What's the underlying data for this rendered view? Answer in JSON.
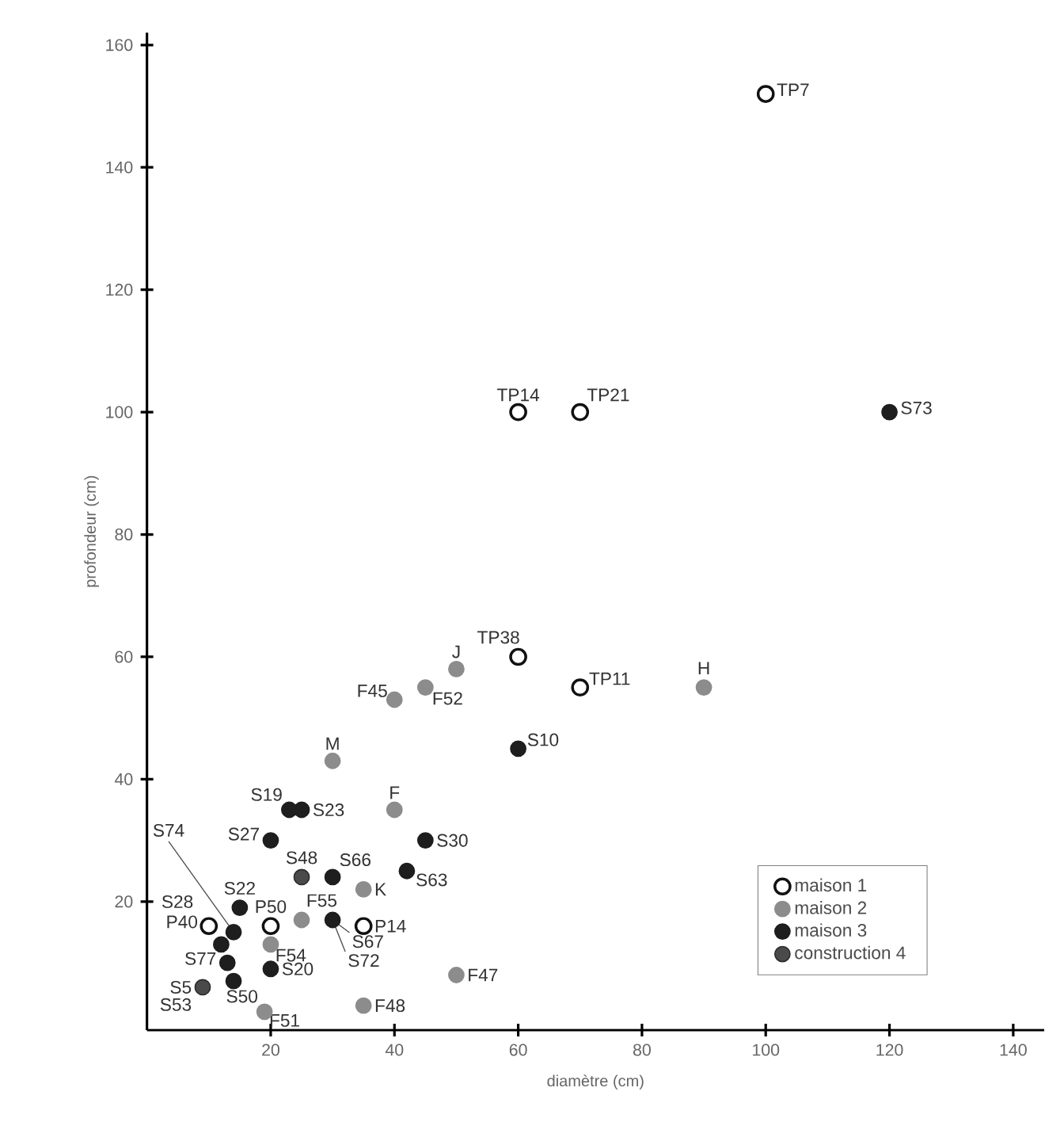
{
  "chart_data": {
    "type": "scatter",
    "xlabel": "diamètre (cm)",
    "ylabel": "profondeur (cm)",
    "xlim": [
      0,
      145
    ],
    "ylim": [
      -1,
      162
    ],
    "xticks": [
      20,
      40,
      60,
      80,
      100,
      120,
      140
    ],
    "yticks": [
      20,
      40,
      60,
      80,
      100,
      120,
      140,
      160
    ],
    "legend": "bottom right",
    "series": [
      {
        "name": "maison 1",
        "color": "#111111",
        "x": [
          100,
          60,
          70,
          60,
          70,
          10,
          20,
          35
        ],
        "values": [
          152,
          100,
          100,
          60,
          55,
          16,
          16,
          16
        ]
      },
      {
        "name": "maison 2",
        "color": "#8c8c8c",
        "x": [
          50,
          40,
          45,
          90,
          30,
          40,
          35,
          25,
          20,
          50,
          35,
          19
        ],
        "values": [
          58,
          53,
          55,
          55,
          43,
          35,
          22,
          17,
          13,
          8,
          3,
          2
        ]
      },
      {
        "name": "maison 3",
        "color": "#1e1e1e",
        "x": [
          120,
          60,
          23,
          25,
          20,
          45,
          30,
          42,
          15,
          14,
          12,
          30,
          null,
          13,
          20,
          14
        ],
        "values": [
          100,
          45,
          35,
          35,
          30,
          30,
          24,
          25,
          19,
          15,
          13,
          17,
          null,
          10,
          9,
          7
        ]
      },
      {
        "name": "construction 4",
        "color": "#4a4a4a",
        "x": [
          25,
          9
        ],
        "values": [
          24,
          6
        ]
      }
    ],
    "annotations": [
      {
        "text": "TP7",
        "x": 100,
        "y": 152
      },
      {
        "text": "TP14",
        "x": 60,
        "y": 100
      },
      {
        "text": "TP21",
        "x": 70,
        "y": 100
      },
      {
        "text": "TP38",
        "x": 60,
        "y": 60
      },
      {
        "text": "TP11",
        "x": 70,
        "y": 55
      },
      {
        "text": "P40",
        "x": 10,
        "y": 16
      },
      {
        "text": "P50",
        "x": 20,
        "y": 16
      },
      {
        "text": "P14",
        "x": 35,
        "y": 16
      },
      {
        "text": "J",
        "x": 50,
        "y": 58
      },
      {
        "text": "F45",
        "x": 40,
        "y": 53
      },
      {
        "text": "F52",
        "x": 45,
        "y": 55
      },
      {
        "text": "H",
        "x": 90,
        "y": 55
      },
      {
        "text": "M",
        "x": 30,
        "y": 43
      },
      {
        "text": "F",
        "x": 40,
        "y": 35
      },
      {
        "text": "K",
        "x": 35,
        "y": 22
      },
      {
        "text": "F55",
        "x": 25,
        "y": 17
      },
      {
        "text": "F54",
        "x": 20,
        "y": 13
      },
      {
        "text": "F47",
        "x": 50,
        "y": 8
      },
      {
        "text": "F48",
        "x": 35,
        "y": 3
      },
      {
        "text": "F51",
        "x": 19,
        "y": 2
      },
      {
        "text": "S73",
        "x": 120,
        "y": 100
      },
      {
        "text": "S10",
        "x": 60,
        "y": 45
      },
      {
        "text": "S19",
        "x": 23,
        "y": 35
      },
      {
        "text": "S23",
        "x": 25,
        "y": 35
      },
      {
        "text": "S27",
        "x": 20,
        "y": 30
      },
      {
        "text": "S30",
        "x": 45,
        "y": 30
      },
      {
        "text": "S66",
        "x": 30,
        "y": 24
      },
      {
        "text": "S63",
        "x": 42,
        "y": 25
      },
      {
        "text": "S22",
        "x": 15,
        "y": 19
      },
      {
        "text": "S74",
        "x": 14,
        "y": 15
      },
      {
        "text": "S28",
        "x": 12,
        "y": 13
      },
      {
        "text": "S67",
        "x": 30,
        "y": 17
      },
      {
        "text": "S72",
        "x": 30,
        "y": 17
      },
      {
        "text": "S77",
        "x": 13,
        "y": 10
      },
      {
        "text": "S20",
        "x": 20,
        "y": 9
      },
      {
        "text": "S50",
        "x": 14,
        "y": 7
      },
      {
        "text": "S48",
        "x": 25,
        "y": 24
      },
      {
        "text": "S5",
        "x": 9,
        "y": 6
      },
      {
        "text": "S53",
        "x": 9,
        "y": 6
      }
    ]
  }
}
